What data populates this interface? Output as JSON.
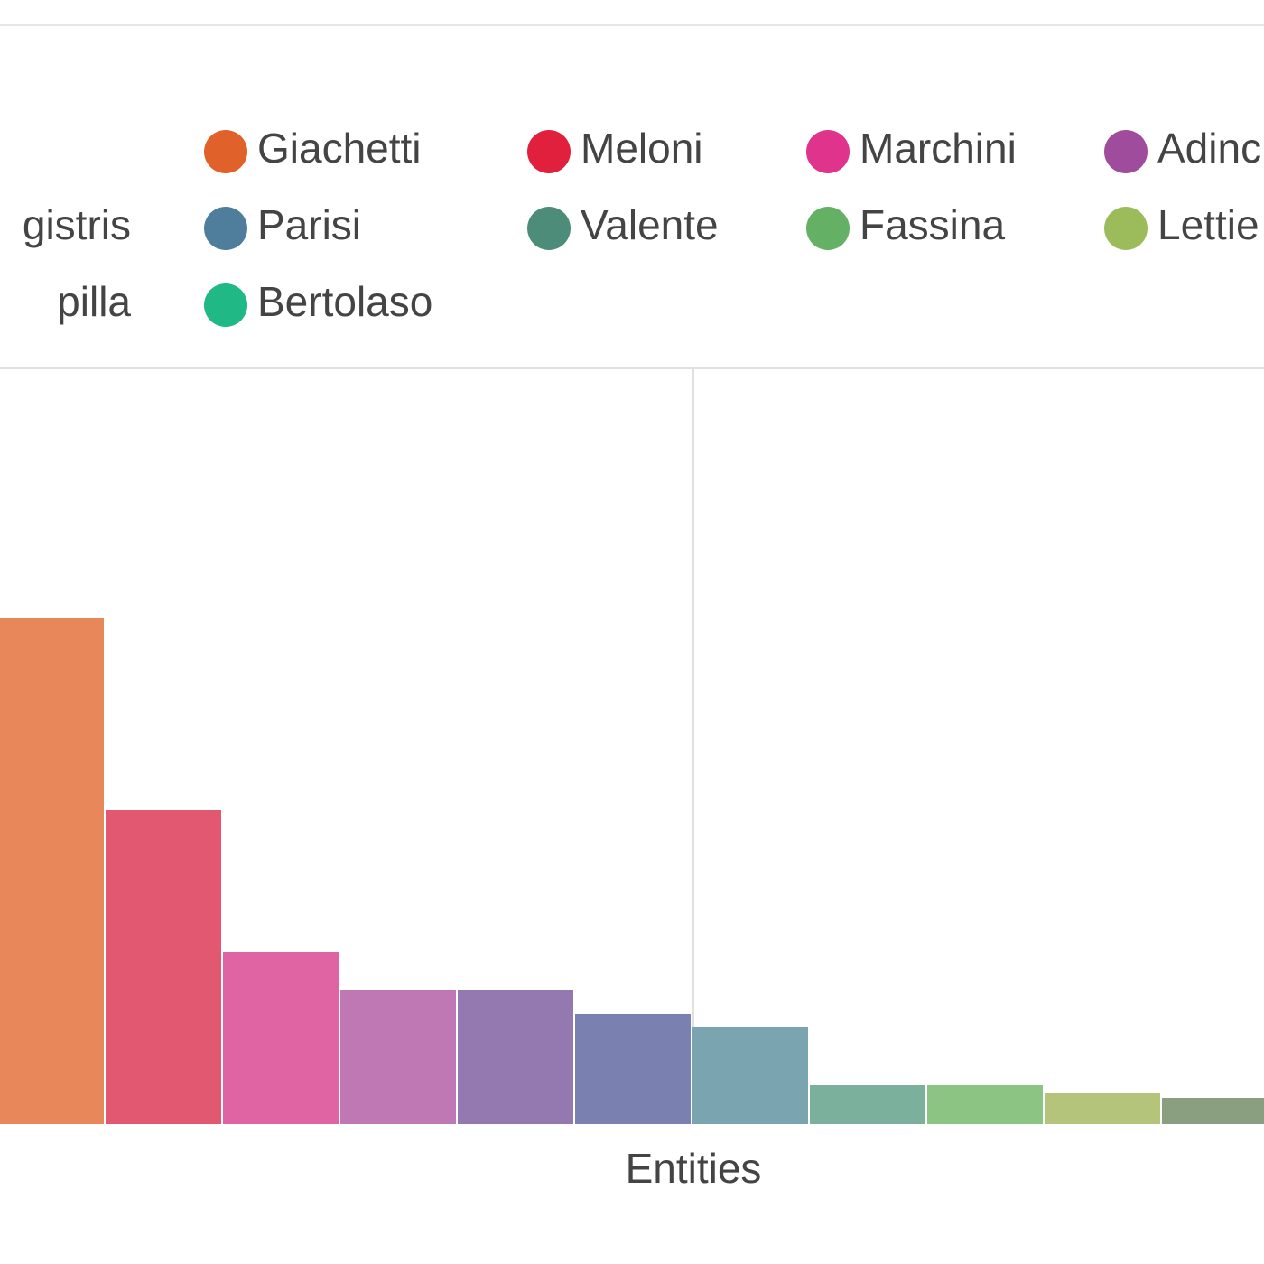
{
  "chart_data": {
    "type": "bar",
    "x_label": "Entities",
    "legend": [
      {
        "name": "gistris"
      },
      {
        "name": "pilla"
      },
      {
        "name": "Giachetti",
        "color": "#e0622a"
      },
      {
        "name": "Parisi",
        "color": "#4e7e9c"
      },
      {
        "name": "Bertolaso",
        "color": "#20b884"
      },
      {
        "name": "Meloni",
        "color": "#e0203c"
      },
      {
        "name": "Valente",
        "color": "#4c8c78"
      },
      {
        "name": "Marchini",
        "color": "#e0348c"
      },
      {
        "name": "Fassina",
        "color": "#64b064"
      },
      {
        "name": "Adinc",
        "color": "#a04c9c"
      },
      {
        "name": "Lettie",
        "color": "#9cbc5c"
      }
    ],
    "categories": [
      null,
      null,
      null,
      null,
      null,
      null,
      null,
      null,
      null,
      null,
      null
    ],
    "values": [
      560,
      348,
      191,
      148,
      148,
      122,
      107,
      43,
      43,
      34,
      29
    ],
    "colors": [
      "#e8885a",
      "#e25870",
      "#e064a4",
      "#c078b4",
      "#9478b0",
      "#7a80b0",
      "#7aa4b0",
      "#7ab09c",
      "#8cc484",
      "#b4c47a",
      "#8a9e80"
    ],
    "ylim": [
      0,
      837
    ]
  }
}
